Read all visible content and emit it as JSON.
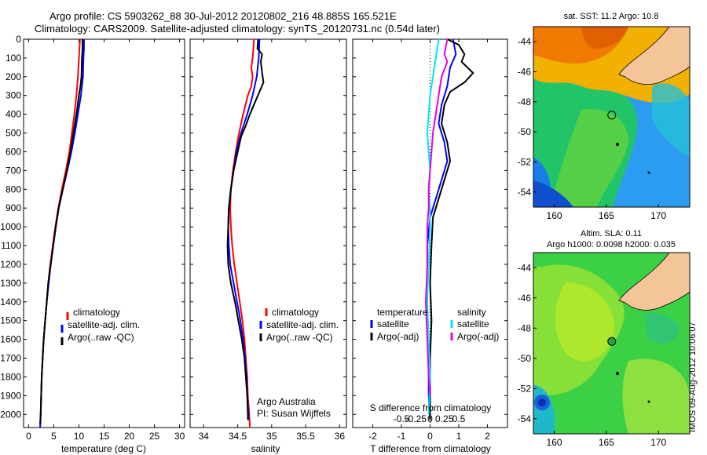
{
  "header": {
    "title_line1": "Argo profile: CS 5903262_88 30-Jul-2012 20120802_216 48.885S 165.521E",
    "title_line2": "Climatology: CARS2009. Satellite-adjusted climatology: synTS_20120731.nc (0.54d later)"
  },
  "colors": {
    "climatology": "#ff0000",
    "satellite": "#0000ff",
    "argo": "#000000",
    "salinity_satellite": "#00e5ff",
    "salinity_argo": "#e800e8",
    "land": "#f5c59a",
    "axis": "#000000"
  },
  "footer": {
    "institution": "Argo Australia",
    "pi": "PI: Susan Wijffels",
    "stamp": "IMOS 09-Aug-2012 10:06:07"
  },
  "chart_data": [
    {
      "type": "line",
      "id": "temperature",
      "xlabel": "temperature (deg C)",
      "xlim": [
        -1,
        31
      ],
      "xticks": [
        0,
        5,
        10,
        15,
        20,
        25,
        30
      ],
      "ylim": [
        2070,
        0
      ],
      "yticks": [
        0,
        100,
        200,
        300,
        400,
        500,
        600,
        700,
        800,
        900,
        1000,
        1100,
        1200,
        1300,
        1400,
        1500,
        1600,
        1700,
        1800,
        1900,
        2000
      ],
      "legend": [
        "climatology",
        "satellite-adj. clim.",
        "Argo(..raw -QC)"
      ],
      "series": [
        {
          "name": "climatology",
          "color_key": "climatology",
          "points": [
            [
              10.2,
              0
            ],
            [
              10.0,
              100
            ],
            [
              9.8,
              200
            ],
            [
              9.5,
              300
            ],
            [
              9.1,
              400
            ],
            [
              8.6,
              500
            ],
            [
              8.1,
              600
            ],
            [
              7.4,
              700
            ],
            [
              6.6,
              800
            ],
            [
              5.9,
              900
            ],
            [
              5.3,
              1000
            ],
            [
              4.8,
              1100
            ],
            [
              4.3,
              1200
            ],
            [
              3.9,
              1300
            ],
            [
              3.6,
              1400
            ],
            [
              3.3,
              1500
            ],
            [
              3.0,
              1600
            ],
            [
              2.8,
              1700
            ],
            [
              2.6,
              1800
            ],
            [
              2.5,
              1900
            ],
            [
              2.4,
              2000
            ],
            [
              2.3,
              2070
            ]
          ]
        },
        {
          "name": "satellite-adj. clim.",
          "color_key": "satellite",
          "points": [
            [
              11.0,
              0
            ],
            [
              11.0,
              50
            ],
            [
              10.9,
              100
            ],
            [
              10.8,
              200
            ],
            [
              10.4,
              300
            ],
            [
              9.8,
              400
            ],
            [
              9.2,
              500
            ],
            [
              8.5,
              600
            ],
            [
              7.7,
              700
            ],
            [
              6.8,
              800
            ],
            [
              6.0,
              900
            ],
            [
              5.4,
              1000
            ],
            [
              4.9,
              1100
            ],
            [
              4.4,
              1200
            ],
            [
              4.0,
              1300
            ],
            [
              3.6,
              1400
            ],
            [
              3.3,
              1500
            ],
            [
              3.0,
              1600
            ],
            [
              2.8,
              1700
            ],
            [
              2.6,
              1800
            ],
            [
              2.5,
              1900
            ],
            [
              2.4,
              2000
            ],
            [
              2.3,
              2070
            ]
          ]
        },
        {
          "name": "Argo(..raw -QC)",
          "color_key": "argo",
          "points": [
            [
              10.7,
              0
            ],
            [
              10.7,
              50
            ],
            [
              10.6,
              100
            ],
            [
              10.5,
              200
            ],
            [
              10.3,
              250
            ],
            [
              10.0,
              300
            ],
            [
              9.5,
              400
            ],
            [
              8.9,
              500
            ],
            [
              8.3,
              600
            ],
            [
              7.6,
              700
            ],
            [
              6.8,
              800
            ],
            [
              6.0,
              900
            ],
            [
              5.4,
              1000
            ],
            [
              4.9,
              1100
            ],
            [
              4.4,
              1200
            ],
            [
              3.9,
              1300
            ],
            [
              3.6,
              1400
            ],
            [
              3.3,
              1500
            ],
            [
              3.0,
              1600
            ],
            [
              2.8,
              1700
            ],
            [
              2.6,
              1800
            ],
            [
              2.5,
              1900
            ],
            [
              2.4,
              2000
            ],
            [
              2.3,
              2050
            ]
          ]
        }
      ]
    },
    {
      "type": "line",
      "id": "salinity",
      "xlabel": "salinity",
      "xlim": [
        33.8,
        36.1
      ],
      "xticks": [
        34,
        34.5,
        35,
        35.5,
        36
      ],
      "ylim": [
        2070,
        0
      ],
      "legend": [
        "climatology",
        "satellite-adj. clim.",
        "Argo(..raw -QC)"
      ],
      "series": [
        {
          "name": "climatology",
          "color_key": "climatology",
          "points": [
            [
              34.74,
              0
            ],
            [
              34.72,
              100
            ],
            [
              34.7,
              150
            ],
            [
              34.72,
              200
            ],
            [
              34.7,
              250
            ],
            [
              34.65,
              300
            ],
            [
              34.58,
              400
            ],
            [
              34.52,
              500
            ],
            [
              34.47,
              600
            ],
            [
              34.43,
              700
            ],
            [
              34.4,
              800
            ],
            [
              34.39,
              900
            ],
            [
              34.4,
              1000
            ],
            [
              34.42,
              1100
            ],
            [
              34.45,
              1200
            ],
            [
              34.49,
              1300
            ],
            [
              34.53,
              1400
            ],
            [
              34.57,
              1500
            ],
            [
              34.6,
              1600
            ],
            [
              34.62,
              1700
            ],
            [
              34.64,
              1800
            ],
            [
              34.65,
              1900
            ],
            [
              34.67,
              2000
            ],
            [
              34.68,
              2070
            ]
          ]
        },
        {
          "name": "satellite-adj. clim.",
          "color_key": "satellite",
          "points": [
            [
              34.82,
              0
            ],
            [
              34.81,
              100
            ],
            [
              34.78,
              200
            ],
            [
              34.72,
              300
            ],
            [
              34.64,
              400
            ],
            [
              34.55,
              500
            ],
            [
              34.48,
              600
            ],
            [
              34.44,
              700
            ],
            [
              34.4,
              800
            ],
            [
              34.37,
              900
            ],
            [
              34.36,
              1000
            ],
            [
              34.37,
              1100
            ],
            [
              34.39,
              1200
            ],
            [
              34.44,
              1300
            ],
            [
              34.49,
              1400
            ],
            [
              34.54,
              1500
            ],
            [
              34.58,
              1600
            ],
            [
              34.61,
              1700
            ],
            [
              34.63,
              1800
            ],
            [
              34.64,
              1900
            ],
            [
              34.66,
              2000
            ],
            [
              34.66,
              2030
            ]
          ]
        },
        {
          "name": "Argo(..raw -QC)",
          "color_key": "argo",
          "points": [
            [
              34.8,
              0
            ],
            [
              34.79,
              50
            ],
            [
              34.86,
              80
            ],
            [
              34.84,
              120
            ],
            [
              34.86,
              180
            ],
            [
              34.88,
              230
            ],
            [
              34.82,
              280
            ],
            [
              34.75,
              340
            ],
            [
              34.68,
              400
            ],
            [
              34.62,
              460
            ],
            [
              34.55,
              520
            ],
            [
              34.5,
              600
            ],
            [
              34.44,
              700
            ],
            [
              34.4,
              800
            ],
            [
              34.37,
              900
            ],
            [
              34.36,
              1000
            ],
            [
              34.35,
              1100
            ],
            [
              34.36,
              1200
            ],
            [
              34.4,
              1300
            ],
            [
              34.46,
              1400
            ],
            [
              34.51,
              1500
            ],
            [
              34.56,
              1600
            ],
            [
              34.6,
              1700
            ],
            [
              34.62,
              1800
            ],
            [
              34.64,
              1900
            ],
            [
              34.65,
              2000
            ],
            [
              34.65,
              2030
            ]
          ]
        }
      ]
    },
    {
      "type": "line",
      "id": "difference",
      "xlabel": "T difference from climatology",
      "xlim": [
        -2.7,
        2.7
      ],
      "xticks": [
        -2,
        -1,
        0,
        1,
        2
      ],
      "top_label": "S difference from climatology",
      "top_ticks": [
        "-0.5",
        "-0.25",
        "0",
        "0.25",
        "0.5"
      ],
      "ylim": [
        2070,
        0
      ],
      "legend_left": {
        "title": "temperature",
        "items": [
          "satellite",
          "Argo(-adj)"
        ]
      },
      "legend_right": {
        "title": "salinity",
        "items": [
          "satellite",
          "Argo(-adj)"
        ]
      },
      "series": [
        {
          "name": "temperature satellite",
          "color_key": "satellite",
          "points": [
            [
              0.8,
              0
            ],
            [
              0.9,
              80
            ],
            [
              0.7,
              150
            ],
            [
              0.6,
              250
            ],
            [
              0.4,
              350
            ],
            [
              0.3,
              450
            ],
            [
              0.5,
              550
            ],
            [
              0.6,
              650
            ],
            [
              0.4,
              750
            ],
            [
              0.2,
              850
            ],
            [
              0.0,
              950
            ],
            [
              -0.1,
              1100
            ],
            [
              -0.1,
              1300
            ],
            [
              -0.1,
              1500
            ],
            [
              -0.05,
              1700
            ],
            [
              -0.05,
              1900
            ],
            [
              0.0,
              2030
            ]
          ]
        },
        {
          "name": "temperature Argo(-adj)",
          "color_key": "argo",
          "points": [
            [
              0.6,
              0
            ],
            [
              1.0,
              30
            ],
            [
              1.2,
              80
            ],
            [
              1.1,
              120
            ],
            [
              1.5,
              180
            ],
            [
              1.2,
              230
            ],
            [
              0.7,
              280
            ],
            [
              0.5,
              350
            ],
            [
              0.4,
              450
            ],
            [
              0.6,
              550
            ],
            [
              0.7,
              650
            ],
            [
              0.5,
              750
            ],
            [
              0.3,
              850
            ],
            [
              0.1,
              950
            ],
            [
              0.05,
              1100
            ],
            [
              0.0,
              1300
            ],
            [
              0.05,
              1500
            ],
            [
              0.0,
              1700
            ],
            [
              0.0,
              1900
            ],
            [
              0.0,
              2030
            ]
          ]
        },
        {
          "name": "salinity satellite",
          "color_key": "salinity_satellite",
          "points": [
            [
              0.3,
              0
            ],
            [
              0.2,
              100
            ],
            [
              0.1,
              200
            ],
            [
              0.0,
              300
            ],
            [
              -0.05,
              400
            ],
            [
              -0.1,
              500
            ],
            [
              -0.05,
              600
            ],
            [
              0.0,
              700
            ],
            [
              -0.05,
              800
            ],
            [
              0.0,
              900
            ],
            [
              0.0,
              1000
            ],
            [
              -0.05,
              1200
            ],
            [
              -0.1,
              1400
            ],
            [
              -0.05,
              1600
            ],
            [
              0.0,
              1800
            ],
            [
              -0.05,
              2000
            ]
          ]
        },
        {
          "name": "salinity Argo(-adj)",
          "color_key": "salinity_argo",
          "points": [
            [
              0.6,
              0
            ],
            [
              0.5,
              80
            ],
            [
              0.6,
              120
            ],
            [
              0.4,
              200
            ],
            [
              0.3,
              300
            ],
            [
              0.2,
              400
            ],
            [
              0.1,
              500
            ],
            [
              0.05,
              600
            ],
            [
              0.0,
              700
            ],
            [
              -0.05,
              800
            ],
            [
              -0.05,
              900
            ],
            [
              -0.1,
              1000
            ],
            [
              -0.1,
              1200
            ],
            [
              -0.15,
              1400
            ],
            [
              -0.1,
              1600
            ],
            [
              -0.05,
              1800
            ],
            [
              0.0,
              1900
            ]
          ]
        }
      ]
    },
    {
      "type": "heatmap",
      "id": "sst_map",
      "title": "sat. SST: 11.2 Argo: 10.8",
      "xticks": [
        160,
        165,
        170
      ],
      "yticks": [
        -44,
        -46,
        -48,
        -50,
        -52,
        -54
      ],
      "xlim": [
        158,
        173
      ],
      "ylim": [
        -55,
        -43
      ],
      "marker": {
        "lon": 165.521,
        "lat": -48.885
      }
    },
    {
      "type": "heatmap",
      "id": "sla_map",
      "title_line1": "Altim. SLA: 0.11",
      "title_line2": "Argo h1000: 0.0098 h2000: 0.035",
      "xticks": [
        160,
        165,
        170
      ],
      "yticks": [
        -44,
        -46,
        -48,
        -50,
        -52,
        -54
      ],
      "xlim": [
        158,
        173
      ],
      "ylim": [
        -55,
        -43
      ],
      "marker": {
        "lon": 165.521,
        "lat": -48.885
      }
    }
  ]
}
